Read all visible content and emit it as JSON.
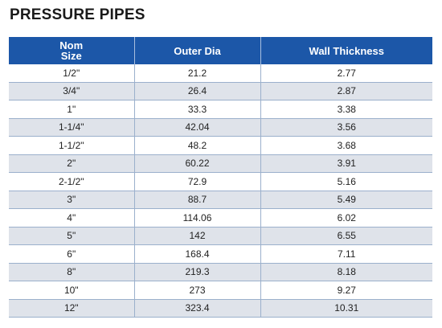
{
  "title": "PRESSURE PIPES",
  "columns": {
    "nom_line1": "Nom",
    "nom_line2": "Size",
    "outer_dia": "Outer Dia",
    "wall_thickness": "Wall Thickness"
  },
  "rows": [
    {
      "nom": "1/2\"",
      "outer": "21.2",
      "wall": "2.77"
    },
    {
      "nom": "3/4\"",
      "outer": "26.4",
      "wall": "2.87"
    },
    {
      "nom": "1\"",
      "outer": "33.3",
      "wall": "3.38"
    },
    {
      "nom": "1-1/4\"",
      "outer": "42.04",
      "wall": "3.56"
    },
    {
      "nom": "1-1/2\"",
      "outer": "48.2",
      "wall": "3.68"
    },
    {
      "nom": "2\"",
      "outer": "60.22",
      "wall": "3.91"
    },
    {
      "nom": "2-1/2\"",
      "outer": "72.9",
      "wall": "5.16"
    },
    {
      "nom": "3\"",
      "outer": "88.7",
      "wall": "5.49"
    },
    {
      "nom": "4\"",
      "outer": "114.06",
      "wall": "6.02"
    },
    {
      "nom": "5\"",
      "outer": "142",
      "wall": "6.55"
    },
    {
      "nom": "6\"",
      "outer": "168.4",
      "wall": "7.11"
    },
    {
      "nom": "8\"",
      "outer": "219.3",
      "wall": "8.18"
    },
    {
      "nom": "10\"",
      "outer": "273",
      "wall": "9.27"
    },
    {
      "nom": "12\"",
      "outer": "323.4",
      "wall": "10.31"
    }
  ],
  "colors": {
    "header_bg": "#1c57a8",
    "stripe_bg": "#dfe3ea"
  }
}
